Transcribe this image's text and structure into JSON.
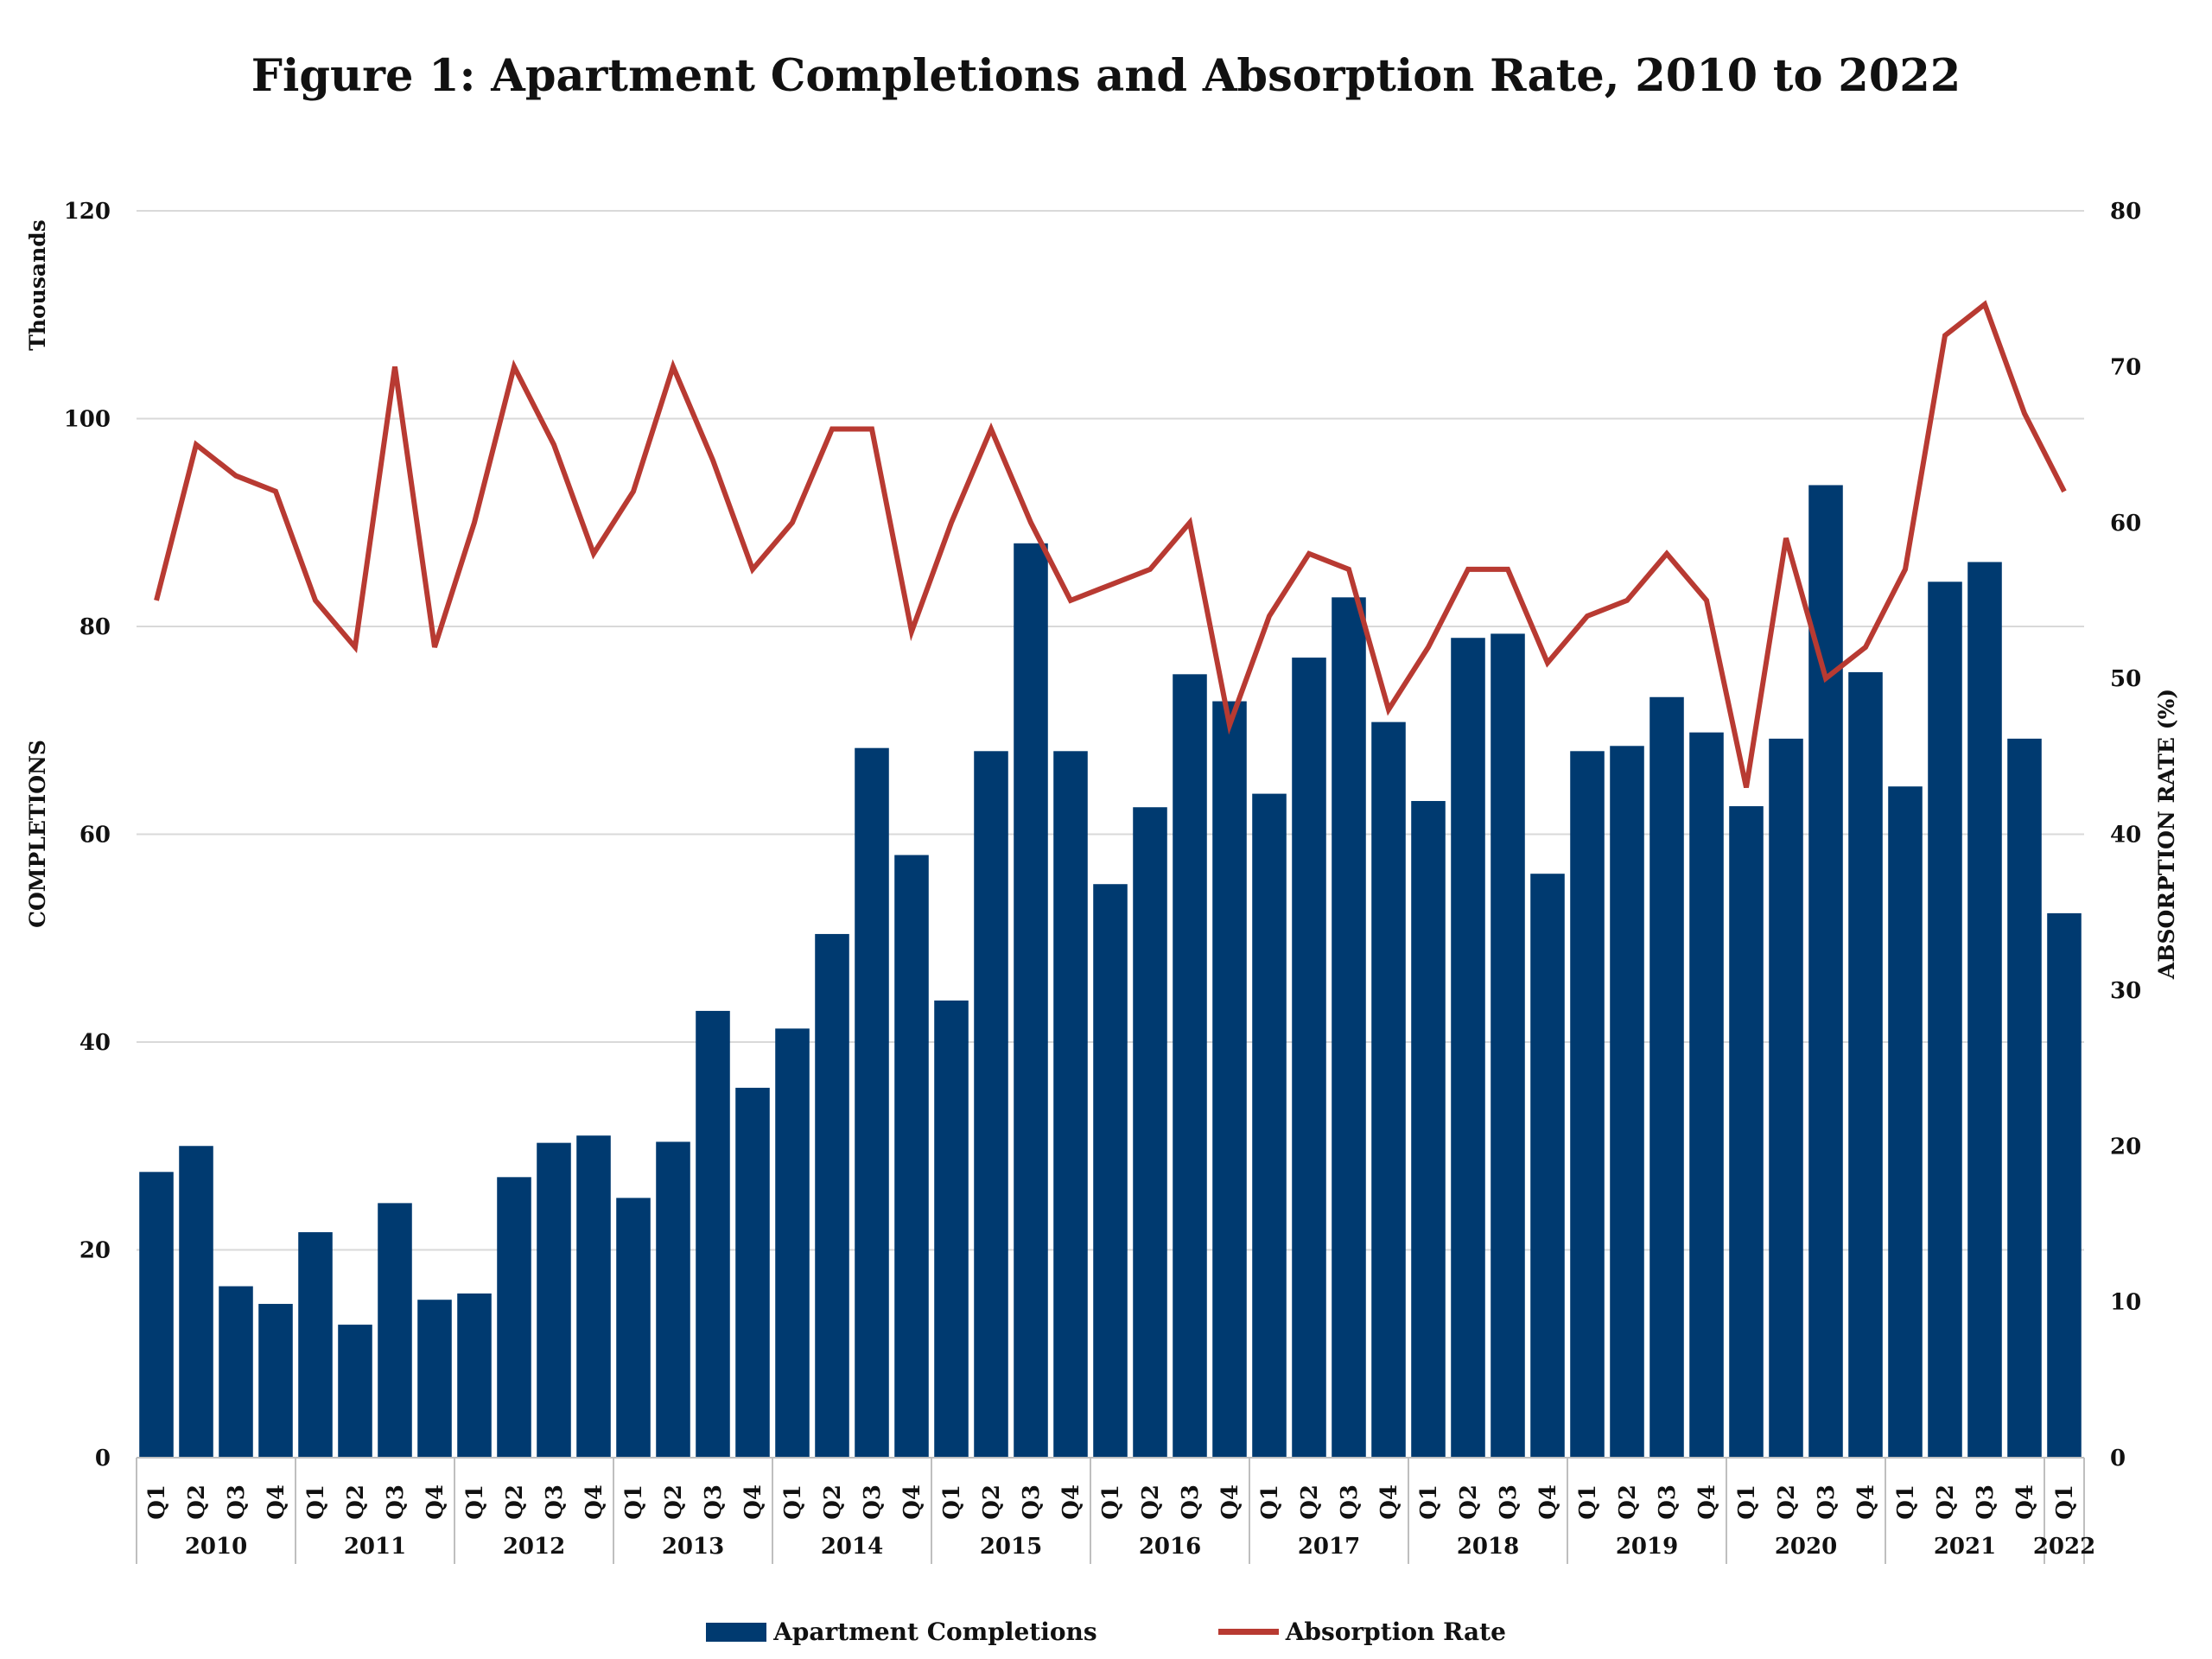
{
  "chart_data": {
    "type": "bar+line",
    "title": "Figure 1: Apartment Completions and Absorption Rate, 2010 to 2022",
    "y_left_unit": "Thousands",
    "ylabel_left": "COMPLETIONS",
    "ylabel_right": "ABSORPTION RATE (%)",
    "ylim_left": [
      0,
      120
    ],
    "ylim_right": [
      0,
      80
    ],
    "yticks_left": [
      "0",
      "20",
      "40",
      "60",
      "80",
      "100",
      "120"
    ],
    "yticks_right": [
      "0",
      "10",
      "20",
      "30",
      "40",
      "50",
      "60",
      "70",
      "80"
    ],
    "grid": true,
    "legend_position": "bottom",
    "colors": {
      "bars": "#003A70",
      "line": "#B83A32",
      "grid": "#D9D9D9"
    },
    "years": [
      "2010",
      "2011",
      "2012",
      "2013",
      "2014",
      "2015",
      "2016",
      "2017",
      "2018",
      "2019",
      "2020",
      "2021",
      "2022"
    ],
    "categories": [
      "Q1",
      "Q2",
      "Q3",
      "Q4",
      "Q1",
      "Q2",
      "Q3",
      "Q4",
      "Q1",
      "Q2",
      "Q3",
      "Q4",
      "Q1",
      "Q2",
      "Q3",
      "Q4",
      "Q1",
      "Q2",
      "Q3",
      "Q4",
      "Q1",
      "Q2",
      "Q3",
      "Q4",
      "Q1",
      "Q2",
      "Q3",
      "Q4",
      "Q1",
      "Q2",
      "Q3",
      "Q4",
      "Q1",
      "Q2",
      "Q3",
      "Q4",
      "Q1",
      "Q2",
      "Q3",
      "Q4",
      "Q1",
      "Q2",
      "Q3",
      "Q4",
      "Q1",
      "Q2",
      "Q3",
      "Q4",
      "Q1"
    ],
    "series": [
      {
        "name": "Apartment Completions",
        "type": "bar",
        "axis": "left",
        "values": [
          27.5,
          30,
          16.5,
          14.8,
          21.7,
          12.8,
          24.5,
          15.2,
          15.8,
          27,
          30.3,
          31,
          25,
          30.4,
          43,
          35.6,
          41.3,
          50.4,
          68.3,
          58,
          44,
          68,
          88,
          68,
          55.2,
          62.6,
          75.4,
          72.8,
          63.9,
          77,
          82.8,
          70.8,
          63.2,
          78.9,
          79.3,
          56.2,
          68,
          68.5,
          73.2,
          69.8,
          62.7,
          69.2,
          93.6,
          75.6,
          64.6,
          84.3,
          86.2,
          69.2,
          52.4
        ]
      },
      {
        "name": "Absorption Rate",
        "type": "line",
        "axis": "right",
        "values": [
          55,
          65,
          63,
          62,
          55,
          52,
          70,
          52,
          60,
          70,
          65,
          58,
          62,
          70,
          64,
          57,
          60,
          66,
          66,
          53,
          60,
          66,
          60,
          55,
          56,
          57,
          60,
          47,
          54,
          58,
          57,
          48,
          52,
          57,
          57,
          51,
          54,
          55,
          58,
          55,
          43,
          59,
          50,
          52,
          57,
          72,
          74,
          67,
          62
        ]
      }
    ]
  }
}
